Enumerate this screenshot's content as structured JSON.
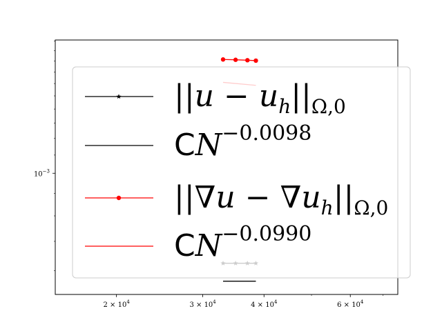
{
  "chart_data": {
    "type": "line",
    "title": "",
    "xlabel": "",
    "ylabel": "",
    "x_scale": "log",
    "y_scale": "log",
    "xlim": [
      15000,
      75000
    ],
    "ylim": [
      0.00053,
      0.00201
    ],
    "grid": false,
    "legend_position": "center",
    "x_ticks": [
      {
        "value": 20000,
        "mantissa": "2",
        "base": "10",
        "exp": "4"
      },
      {
        "value": 30000,
        "mantissa": "3",
        "base": "10",
        "exp": "4"
      },
      {
        "value": 40000,
        "mantissa": "4",
        "base": "10",
        "exp": "4"
      },
      {
        "value": 60000,
        "mantissa": "6",
        "base": "10",
        "exp": "4"
      }
    ],
    "y_ticks": [
      {
        "value": 0.001,
        "base": "10",
        "exp": "−3"
      }
    ],
    "x": [
      33000,
      35000,
      37000,
      38500
    ],
    "series": [
      {
        "name": "||u − u_h||_Ω,0",
        "legend_parts": [
          "||",
          "u",
          " − ",
          "u",
          "h",
          "||",
          "Ω,0"
        ],
        "style": "line-star",
        "color": "#000000",
        "values": [
          0.000624,
          0.000624,
          0.000624,
          0.000624
        ]
      },
      {
        "name": "CN^−0.0098",
        "legend_parts": [
          "C",
          "N",
          "−0.0098"
        ],
        "style": "line",
        "color": "#000000",
        "x": [
          33000,
          38500
        ],
        "values": [
          0.000568,
          0.000568
        ]
      },
      {
        "name": "||∇u − ∇u_h||_Ω,0",
        "legend_parts": [
          "||",
          "∇",
          "u",
          " − ",
          "∇",
          "u",
          "h",
          "||",
          "Ω,0"
        ],
        "style": "line-dot",
        "color": "#ff0000",
        "values": [
          0.001815,
          0.001812,
          0.001808,
          0.001804
        ]
      },
      {
        "name": "CN^−0.0990",
        "legend_parts": [
          "C",
          "N",
          "−0.0990"
        ],
        "style": "line",
        "color": "#ff0000",
        "x": [
          33000,
          38500
        ],
        "values": [
          0.00161,
          0.001585
        ]
      }
    ]
  }
}
